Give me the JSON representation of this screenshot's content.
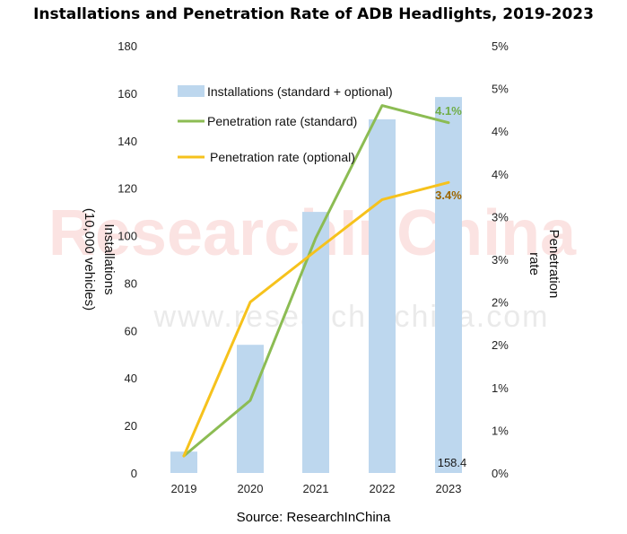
{
  "chart_data": {
    "type": "bar",
    "title": "Installations and Penetration Rate of ADB Headlights, 2019-2023",
    "categories": [
      "2019",
      "2020",
      "2021",
      "2022",
      "2023"
    ],
    "y_left": {
      "label": "Installations (10,000 vehicles)",
      "range": [
        0,
        180
      ],
      "ticks": [
        "0",
        "20",
        "40",
        "60",
        "80",
        "100",
        "120",
        "140",
        "160",
        "180"
      ]
    },
    "y_right": {
      "label": "Penetration rate",
      "range": [
        0,
        5
      ],
      "ticks": [
        "0%",
        "1%",
        "1%",
        "2%",
        "2%",
        "3%",
        "3%",
        "4%",
        "4%",
        "5%",
        "5%"
      ]
    },
    "series": [
      {
        "name": "Installations (standard + optional)",
        "type": "bar",
        "axis": "left",
        "color": "#bdd7ee",
        "values": [
          9,
          54,
          110,
          149,
          158.4
        ]
      },
      {
        "name": "Penetration rate (standard)",
        "type": "line",
        "axis": "right",
        "color": "#8cbc53",
        "values": [
          0.2,
          0.85,
          2.75,
          4.3,
          4.1
        ]
      },
      {
        "name": "Penetration rate (optional)",
        "type": "line",
        "axis": "right",
        "color": "#f6c21c",
        "values": [
          0.2,
          2.0,
          2.6,
          3.2,
          3.4
        ]
      }
    ],
    "data_labels": [
      {
        "series": 0,
        "index": 4,
        "text": "158.4",
        "color": "#1a1a1a"
      },
      {
        "series": 1,
        "index": 4,
        "text": "4.1%",
        "color": "#70ad47"
      },
      {
        "series": 2,
        "index": 4,
        "text": "3.4%",
        "color": "#9c6500"
      }
    ],
    "legend_position": "top-center",
    "grid": false
  },
  "source": "Source: ResearchInChina",
  "watermark": {
    "text": "ResearchInChina",
    "url_text": "www.researchinchina.com"
  }
}
